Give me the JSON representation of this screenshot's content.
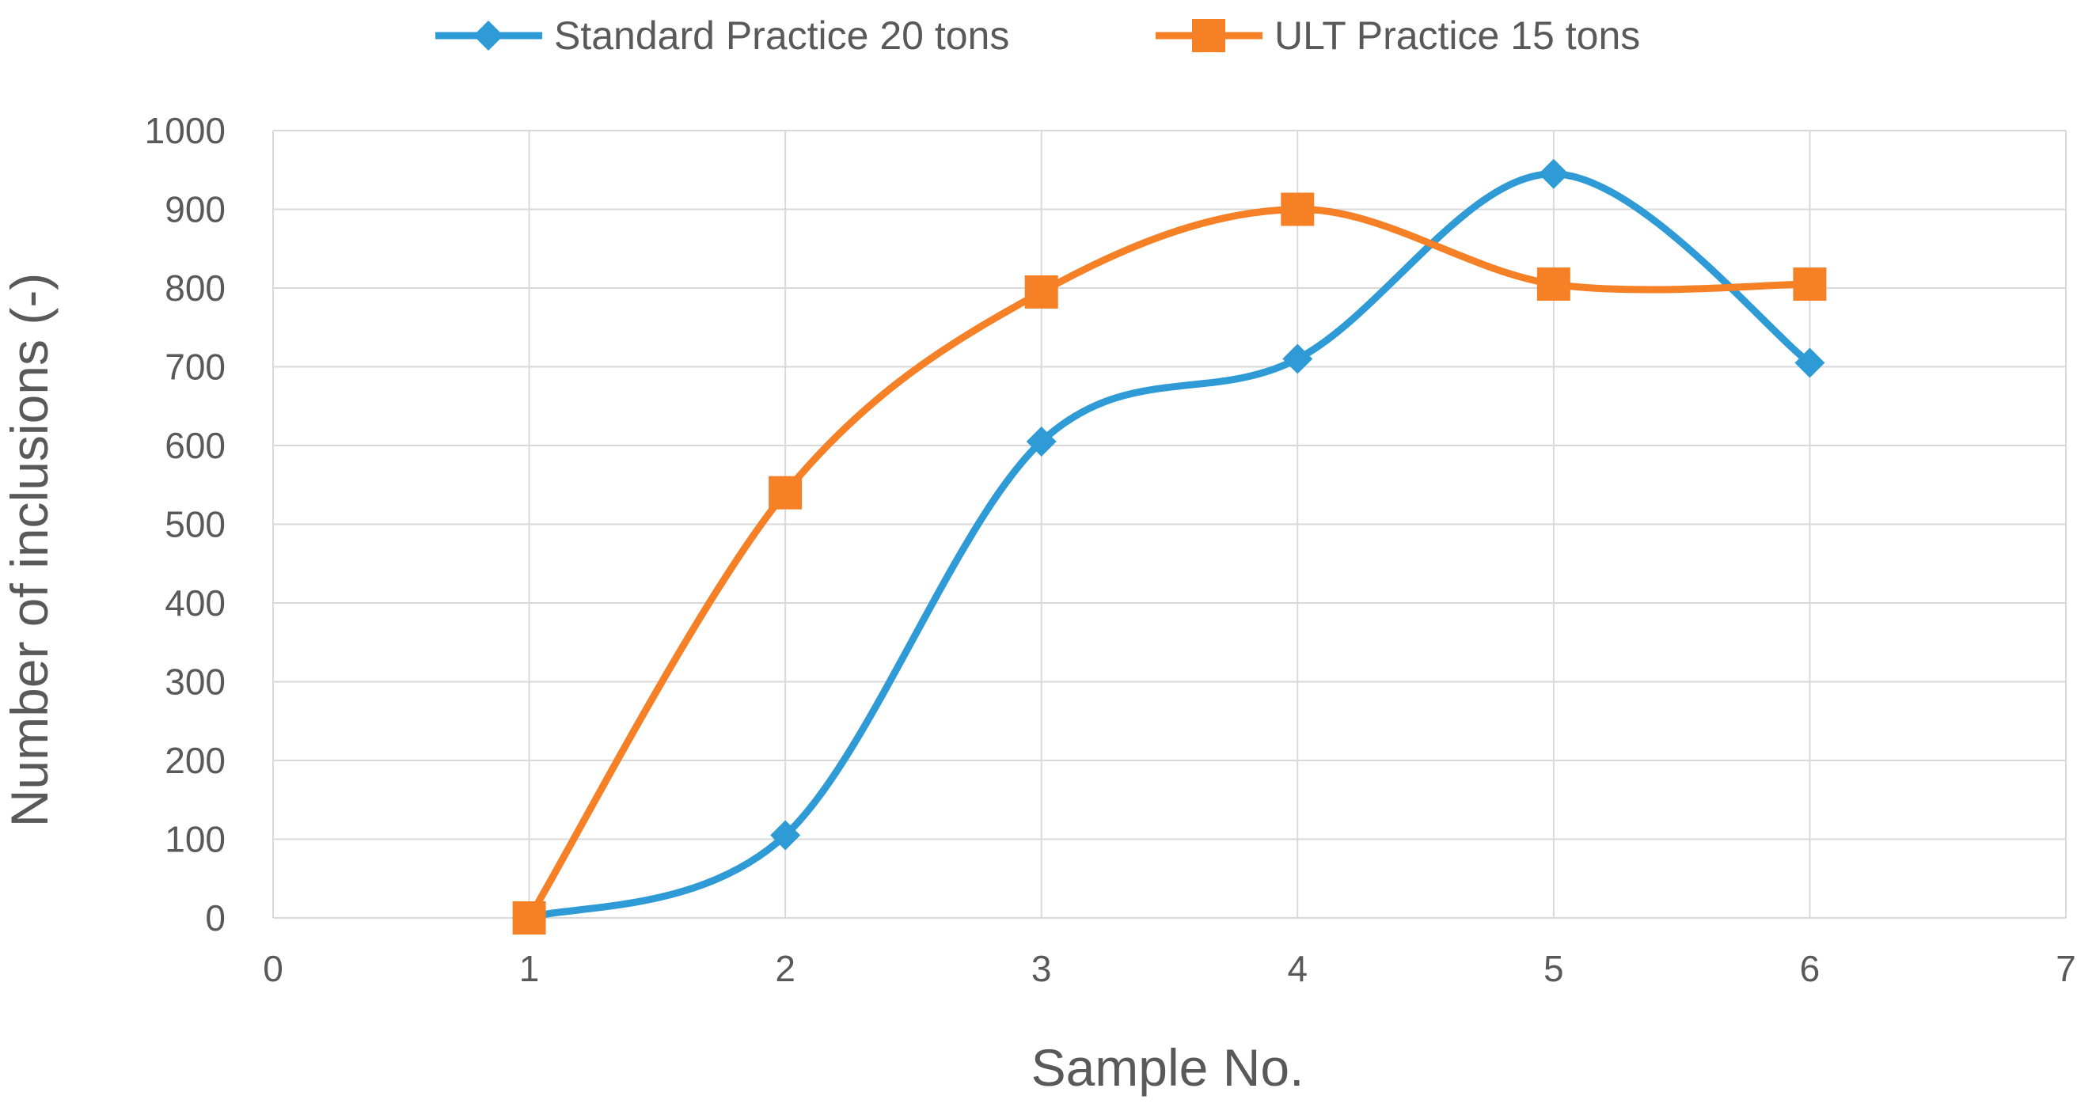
{
  "chart_data": {
    "type": "line",
    "title": "",
    "xlabel": "Sample No.",
    "ylabel": "Number of inclusions (-)",
    "xlim": [
      0,
      7
    ],
    "ylim": [
      0,
      1000
    ],
    "xticks": [
      0,
      1,
      2,
      3,
      4,
      5,
      6,
      7
    ],
    "yticks": [
      0,
      100,
      200,
      300,
      400,
      500,
      600,
      700,
      800,
      900,
      1000
    ],
    "grid": true,
    "smooth": true,
    "legend_position": "top",
    "series": [
      {
        "name": "Standard Practice 20 tons",
        "color": "#2e9bd6",
        "marker": "diamond",
        "x": [
          1,
          2,
          3,
          4,
          5,
          6
        ],
        "y": [
          0,
          105,
          605,
          710,
          945,
          705
        ]
      },
      {
        "name": "ULT Practice 15 tons",
        "color": "#f58025",
        "marker": "square",
        "x": [
          1,
          2,
          3,
          4,
          5,
          6
        ],
        "y": [
          0,
          540,
          795,
          900,
          805,
          805
        ]
      }
    ]
  }
}
